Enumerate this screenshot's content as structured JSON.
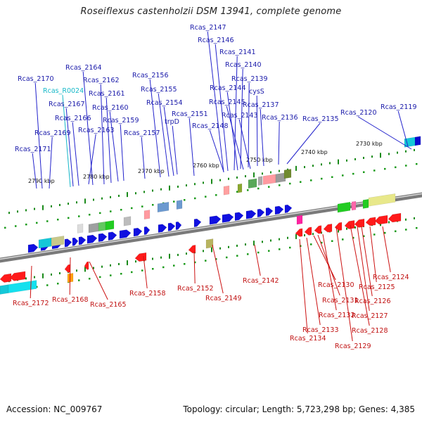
{
  "title": "Roseiflexus castenholzii DSM 13941, complete genome",
  "footer": {
    "accession": "Accession: NC_009767",
    "topology": "Topology: circular; Length: 5,723,298 bp; Genes: 4,385"
  },
  "colors": {
    "forward": "#1010e0",
    "reverse": "#ff1a1a",
    "label_top": "#1a1aaa",
    "label_bottom": "#c01010",
    "rna": "#16b8c8",
    "backbone": "#7a7a7a"
  },
  "scale_labels": [
    "2790 kbp",
    "2780 kbp",
    "2770 kbp",
    "2760 kbp",
    "2750 kbp",
    "2740 kbp",
    "2730 kbp"
  ],
  "top_labels": [
    "Rcas_2147",
    "Rcas_2146",
    "Rcas_2141",
    "Rcas_2164",
    "Rcas_2140",
    "Rcas_2170",
    "Rcas_2162",
    "Rcas_2156",
    "Rcas_2139",
    "Rcas_R0024",
    "Rcas_2161",
    "Rcas_2155",
    "Rcas_2144",
    "cysS",
    "Rcas_2167",
    "Rcas_2160",
    "Rcas_2154",
    "Rcas_2145",
    "Rcas_2137",
    "Rcas_2120",
    "Rcas_2119",
    "Rcas_2166",
    "Rcas_2159",
    "Rcas_2151",
    "Rcas_2143",
    "Rcas_2136",
    "Rcas_2135",
    "trpD",
    "Rcas_2163",
    "Rcas_2148",
    "Rcas_2169",
    "Rcas_2157",
    "Rcas_2171"
  ],
  "bottom_labels": [
    "Rcas_2142",
    "Rcas_2124",
    "Rcas_2130",
    "Rcas_2125",
    "Rcas_2158",
    "Rcas_2152",
    "Rcas_2131",
    "Rcas_2126",
    "Rcas_2172",
    "Rcas_2168",
    "Rcas_2149",
    "Rcas_2165",
    "Rcas_2132",
    "Rcas_2127",
    "Rcas_2133",
    "Rcas_2128",
    "Rcas_2134",
    "Rcas_2129"
  ]
}
